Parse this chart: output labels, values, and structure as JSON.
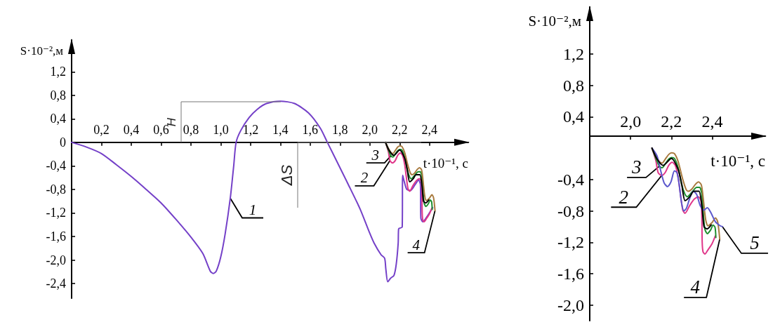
{
  "chart_data": [
    {
      "type": "line",
      "xlabel": "t·10⁻¹, с",
      "ylabel": "S·10⁻²,м",
      "xlim": [
        0,
        2.66
      ],
      "ylim": [
        -2.65,
        1.74
      ],
      "xticks": [
        {
          "value": 0.2,
          "label": "0,2"
        },
        {
          "value": 0.4,
          "label": "0,4"
        },
        {
          "value": 0.6,
          "label": "0,6"
        },
        {
          "value": 0.8,
          "label": "0,8"
        },
        {
          "value": 1.0,
          "label": "1,0"
        },
        {
          "value": 1.2,
          "label": "1,2"
        },
        {
          "value": 1.4,
          "label": "1,4"
        },
        {
          "value": 1.6,
          "label": "1,6"
        },
        {
          "value": 1.8,
          "label": "1,8"
        },
        {
          "value": 2.0,
          "label": "2,0"
        },
        {
          "value": 2.2,
          "label": "2,2"
        },
        {
          "value": 2.4,
          "label": "2,4"
        }
      ],
      "yticks": [
        {
          "value": -2.4,
          "label": "-2,4"
        },
        {
          "value": -2.0,
          "label": "-2,0"
        },
        {
          "value": -1.6,
          "label": "-1,6"
        },
        {
          "value": -1.2,
          "label": "-1,2"
        },
        {
          "value": -0.8,
          "label": "-0,8"
        },
        {
          "value": -0.4,
          "label": "-0,4"
        },
        0,
        {
          "value": 0.4,
          "label": "0,4"
        },
        {
          "value": 0.8,
          "label": "0,8"
        },
        {
          "value": 1.2,
          "label": "1,2"
        }
      ],
      "marker": "none",
      "line_style": "solid",
      "annotations": [
        "H",
        "ΔS"
      ],
      "series": [
        {
          "name": "1",
          "color": "#7440c8",
          "x": [
            0,
            0.1,
            0.2,
            0.3,
            0.4,
            0.5,
            0.6,
            0.7,
            0.8,
            0.88,
            0.93,
            0.95,
            0.97,
            1.0,
            1.03,
            1.064,
            1.087,
            1.103,
            1.134,
            1.19,
            1.244,
            1.307,
            1.4,
            1.495,
            1.589,
            1.668,
            1.715,
            1.778,
            1.856,
            1.934,
            1.997,
            2.028,
            2.075,
            2.099,
            2.107,
            2.12,
            2.139,
            2.162,
            2.177,
            2.19,
            2.193,
            2.217,
            2.22,
            2.232,
            2.248,
            2.272,
            2.303,
            2.327,
            2.339,
            2.342,
            2.355,
            2.381,
            2.421
          ],
          "values": [
            0,
            -0.08,
            -0.19,
            -0.38,
            -0.58,
            -0.8,
            -1.03,
            -1.31,
            -1.61,
            -1.89,
            -2.19,
            -2.23,
            -2.19,
            -1.95,
            -1.55,
            -0.95,
            -0.4,
            0,
            0.2,
            0.42,
            0.56,
            0.66,
            0.7,
            0.66,
            0.5,
            0.24,
            0,
            -0.32,
            -0.72,
            -1.13,
            -1.53,
            -1.71,
            -1.91,
            -1.97,
            -2.15,
            -2.37,
            -2.31,
            -2.26,
            -2.07,
            -1.71,
            -1.47,
            -1.44,
            -0.56,
            -0.68,
            -0.8,
            -0.82,
            -0.72,
            -0.64,
            -0.72,
            -1.29,
            -1.35,
            -1.27,
            -1.11
          ]
        },
        {
          "name": "2",
          "color": "#e0378a",
          "x": [
            2.105,
            2.124,
            2.135,
            2.152,
            2.17,
            2.187,
            2.204,
            2.219,
            2.233,
            2.244,
            2.256,
            2.267,
            2.29,
            2.312,
            2.333,
            2.345,
            2.349,
            2.351,
            2.355,
            2.364,
            2.381,
            2.399,
            2.415
          ],
          "values": [
            0,
            -0.16,
            -0.31,
            -0.35,
            -0.31,
            -0.22,
            -0.18,
            -0.22,
            -0.37,
            -0.58,
            -0.79,
            -0.83,
            -0.73,
            -0.65,
            -0.62,
            -0.67,
            -0.85,
            -1.2,
            -1.32,
            -1.35,
            -1.29,
            -1.22,
            -1.12
          ]
        },
        {
          "name": "3",
          "color": "#1f8f2f",
          "x": [
            2.105,
            2.124,
            2.141,
            2.155,
            2.17,
            2.187,
            2.201,
            2.215,
            2.233,
            2.25,
            2.267,
            2.278,
            2.301,
            2.324,
            2.338,
            2.349,
            2.356,
            2.364,
            2.376,
            2.393,
            2.404,
            2.414,
            2.418
          ],
          "values": [
            0,
            -0.13,
            -0.23,
            -0.25,
            -0.2,
            -0.14,
            -0.12,
            -0.13,
            -0.25,
            -0.46,
            -0.59,
            -0.62,
            -0.56,
            -0.5,
            -0.5,
            -0.58,
            -0.82,
            -1.03,
            -1.09,
            -1.04,
            -0.98,
            -1.01,
            -1.14
          ]
        },
        {
          "name": "4",
          "color": "#a87a3e",
          "x": [
            2.105,
            2.124,
            2.141,
            2.155,
            2.17,
            2.187,
            2.201,
            2.215,
            2.233,
            2.256,
            2.273,
            2.284,
            2.301,
            2.318,
            2.333,
            2.347,
            2.356,
            2.368,
            2.379,
            2.399,
            2.416,
            2.427,
            2.437
          ],
          "values": [
            0,
            -0.1,
            -0.17,
            -0.19,
            -0.14,
            -0.08,
            -0.06,
            -0.07,
            -0.17,
            -0.4,
            -0.53,
            -0.55,
            -0.52,
            -0.46,
            -0.43,
            -0.47,
            -0.64,
            -0.91,
            -0.99,
            -0.95,
            -0.89,
            -0.94,
            -1.16
          ]
        },
        {
          "color": "#000000",
          "x": [
            2.105,
            2.13,
            2.16,
            2.2,
            2.233,
            2.25,
            2.267,
            2.29,
            2.31,
            2.335,
            2.35,
            2.36,
            2.375,
            2.395
          ],
          "values": [
            0,
            -0.14,
            -0.22,
            -0.13,
            -0.27,
            -0.45,
            -0.67,
            -0.62,
            -0.55,
            -0.55,
            -0.75,
            -1.0,
            -1.03,
            -0.98
          ]
        }
      ]
    },
    {
      "type": "line",
      "xlabel": "t·10⁻¹, с",
      "ylabel": "S·10⁻²,м",
      "xlim": [
        1.8,
        2.66
      ],
      "ylim": [
        -2.2,
        1.8
      ],
      "xticks": [
        {
          "value": 2.0,
          "label": "2,0"
        },
        {
          "value": 2.2,
          "label": "2,2"
        },
        {
          "value": 2.4,
          "label": "2,4"
        }
      ],
      "yticks": [
        {
          "value": -2.0,
          "label": "-2,0"
        },
        {
          "value": -1.6,
          "label": "-1,6"
        },
        {
          "value": -1.2,
          "label": "-1,2"
        },
        {
          "value": -0.8,
          "label": "-0,8"
        },
        {
          "value": -0.4,
          "label": "-0,4"
        },
        {
          "value": 0.4,
          "label": "0,4"
        },
        {
          "value": 0.8,
          "label": "0,8"
        },
        {
          "value": 1.2,
          "label": "1,2"
        }
      ],
      "marker": "none",
      "line_style": "solid",
      "series": [
        {
          "name": "2",
          "color": "#e0378a",
          "x": [
            2.105,
            2.124,
            2.135,
            2.152,
            2.17,
            2.187,
            2.204,
            2.219,
            2.233,
            2.244,
            2.256,
            2.267,
            2.29,
            2.312,
            2.333,
            2.345,
            2.349,
            2.351,
            2.355,
            2.364,
            2.381,
            2.399,
            2.415
          ],
          "values": [
            0,
            -0.16,
            -0.31,
            -0.35,
            -0.31,
            -0.22,
            -0.18,
            -0.22,
            -0.37,
            -0.58,
            -0.79,
            -0.83,
            -0.73,
            -0.65,
            -0.62,
            -0.67,
            -0.85,
            -1.2,
            -1.32,
            -1.35,
            -1.29,
            -1.22,
            -1.12
          ]
        },
        {
          "name": "3",
          "color": "#1f8f2f",
          "x": [
            2.105,
            2.124,
            2.141,
            2.155,
            2.17,
            2.187,
            2.201,
            2.215,
            2.233,
            2.25,
            2.267,
            2.278,
            2.301,
            2.324,
            2.338,
            2.349,
            2.356,
            2.364,
            2.376,
            2.393,
            2.404,
            2.414,
            2.418
          ],
          "values": [
            0,
            -0.13,
            -0.23,
            -0.25,
            -0.2,
            -0.14,
            -0.12,
            -0.13,
            -0.25,
            -0.46,
            -0.59,
            -0.62,
            -0.56,
            -0.5,
            -0.5,
            -0.58,
            -0.82,
            -1.03,
            -1.09,
            -1.04,
            -0.98,
            -1.01,
            -1.14
          ]
        },
        {
          "name": "4",
          "color": "#a87a3e",
          "x": [
            2.105,
            2.124,
            2.141,
            2.155,
            2.17,
            2.187,
            2.201,
            2.215,
            2.233,
            2.256,
            2.273,
            2.284,
            2.301,
            2.318,
            2.333,
            2.347,
            2.356,
            2.368,
            2.379,
            2.399,
            2.416,
            2.427,
            2.437
          ],
          "values": [
            0,
            -0.1,
            -0.17,
            -0.19,
            -0.14,
            -0.08,
            -0.06,
            -0.07,
            -0.17,
            -0.4,
            -0.53,
            -0.55,
            -0.52,
            -0.46,
            -0.43,
            -0.47,
            -0.64,
            -0.91,
            -0.99,
            -0.95,
            -0.89,
            -0.94,
            -1.16
          ]
        },
        {
          "name": "5",
          "color": "#5b57cc",
          "x": [
            2.105,
            2.13,
            2.147,
            2.164,
            2.181,
            2.198,
            2.215,
            2.227,
            2.238,
            2.25,
            2.261,
            2.273,
            2.29,
            2.307,
            2.324,
            2.341,
            2.359,
            2.376,
            2.393,
            2.416,
            2.439,
            2.45
          ],
          "values": [
            0,
            -0.1,
            -0.28,
            -0.44,
            -0.49,
            -0.43,
            -0.29,
            -0.31,
            -0.46,
            -0.7,
            -0.8,
            -0.77,
            -0.64,
            -0.55,
            -0.59,
            -0.73,
            -0.79,
            -0.76,
            -0.82,
            -0.94,
            -0.99,
            -1.0
          ]
        },
        {
          "color": "#000000",
          "x": [
            2.105,
            2.13,
            2.16,
            2.2,
            2.233,
            2.25,
            2.267,
            2.29,
            2.31,
            2.335,
            2.35,
            2.36,
            2.375,
            2.395
          ],
          "values": [
            0,
            -0.14,
            -0.22,
            -0.13,
            -0.27,
            -0.45,
            -0.67,
            -0.62,
            -0.55,
            -0.55,
            -0.75,
            -1.0,
            -1.03,
            -0.98
          ]
        }
      ]
    }
  ]
}
